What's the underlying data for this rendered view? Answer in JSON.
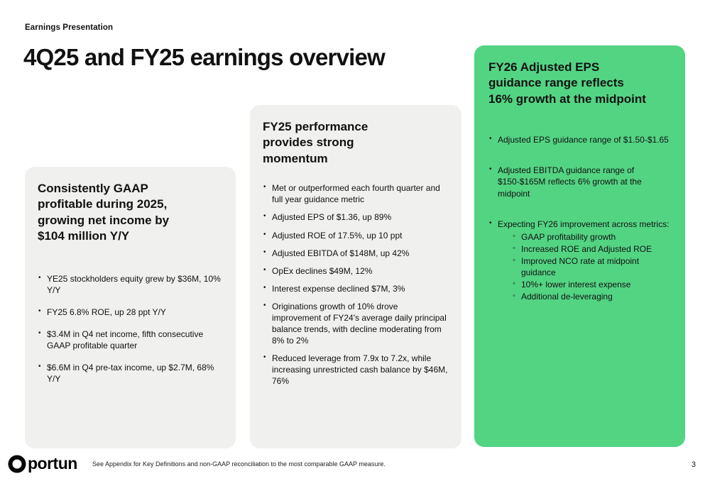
{
  "slide": {
    "eyebrow": "Earnings Presentation",
    "title": "4Q25 and FY25 earnings overview",
    "page_number": "3"
  },
  "cards": {
    "gaap": {
      "heading": "Consistently GAAP profitable during 2025, growing net income by $104 million Y/Y",
      "bullets": [
        "YE25 stockholders equity grew by $36M, 10% Y/Y",
        "FY25 6.8% ROE, up 28 ppt Y/Y",
        "$3.4M in Q4 net income, fifth consecutive GAAP profitable quarter",
        "$6.6M in Q4 pre-tax income, up $2.7M, 68% Y/Y"
      ]
    },
    "fy25": {
      "heading": "FY25 performance provides strong momentum",
      "bullets": [
        "Met or outperformed each fourth quarter and full year guidance metric",
        "Adjusted EPS of $1.36, up 89%",
        "Adjusted ROE of 17.5%, up 10 ppt",
        "Adjusted EBITDA of $148M, up 42%",
        "OpEx declines $49M, 12%",
        "Interest expense declined $7M, 3%",
        "Originations growth of 10% drove improvement of FY24's average daily principal balance trends, with decline moderating from 8% to 2%",
        "Reduced leverage from 7.9x to 7.2x, while increasing unrestricted cash balance by $46M, 76%"
      ]
    },
    "fy26": {
      "heading": "FY26 Adjusted EPS guidance range reflects 16% growth at the midpoint",
      "bullets": [
        {
          "text": "Adjusted EPS guidance range of $1.50-$1.65"
        },
        {
          "text": "Adjusted EBITDA guidance range of $150-$165M reflects 6% growth at the midpoint"
        },
        {
          "text": "Expecting FY26 improvement across metrics:",
          "sub": [
            "GAAP profitability growth",
            "Increased ROE and Adjusted ROE",
            "Improved NCO rate at midpoint guidance",
            "10%+ lower interest expense",
            "Additional de-leveraging"
          ]
        }
      ]
    }
  },
  "footer": {
    "logo_text": "portun",
    "footnote": "See Appendix for Key Definitions and non-GAAP reconciliation to the most comparable GAAP measure."
  },
  "colors": {
    "card_gray": "#f0f0ee",
    "card_green": "#53d483",
    "text": "#111111"
  }
}
